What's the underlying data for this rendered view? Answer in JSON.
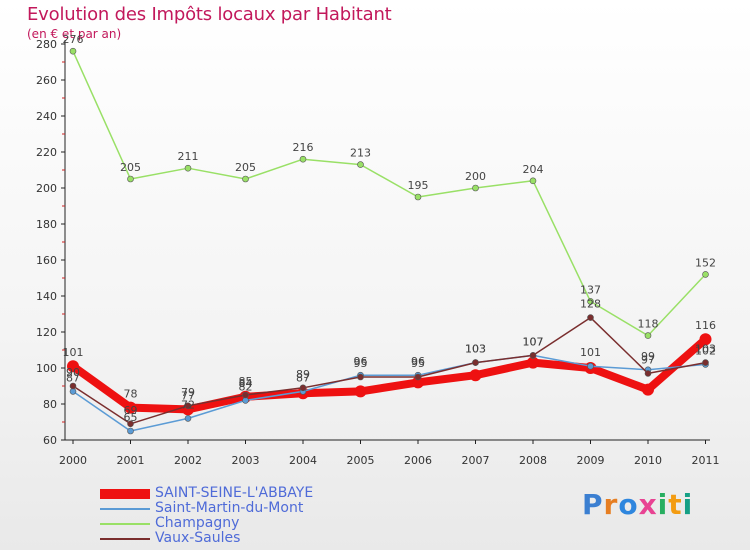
{
  "title": "Evolution des Impôts locaux par Habitant",
  "subtitle": "(en € et par an)",
  "logo": {
    "letters": [
      "P",
      "r",
      "o",
      "x",
      "i",
      "t",
      "i"
    ],
    "colors": [
      "#3b7fd1",
      "#e67e22",
      "#2e86de",
      "#e84393",
      "#27ae60",
      "#f39c12",
      "#16a085"
    ]
  },
  "chart_data": {
    "type": "line",
    "title": "Evolution des Impôts locaux par Habitant",
    "subtitle": "(en € et par an)",
    "x": [
      "2000",
      "2001",
      "2002",
      "2003",
      "2004",
      "2005",
      "2006",
      "2007",
      "2008",
      "2009",
      "2010",
      "2011"
    ],
    "ylim": [
      60,
      280
    ],
    "yticks": [
      "60",
      "80",
      "100",
      "120",
      "140",
      "160",
      "180",
      "200",
      "220",
      "240",
      "260",
      "280"
    ],
    "grid": false,
    "legend_position": "bottom-left",
    "series": [
      {
        "name": "SAINT-SEINE-L'ABBAYE",
        "color": "#ee1111",
        "values": [
          101,
          78,
          77,
          84,
          86,
          87,
          92,
          96,
          103,
          100,
          88,
          116
        ],
        "labels": [
          "101",
          "78",
          "77",
          "84",
          "",
          "",
          "",
          "",
          "",
          "",
          "",
          "116"
        ]
      },
      {
        "name": "Saint-Martin-du-Mont",
        "color": "#5b9bd5",
        "values": [
          87,
          65,
          72,
          82,
          87,
          96,
          96,
          103,
          107,
          101,
          99,
          102
        ],
        "labels": [
          "87",
          "65",
          "72",
          "82",
          "87",
          "96",
          "96",
          "103",
          "107",
          "101",
          "99",
          "102"
        ]
      },
      {
        "name": "Champagny",
        "color": "#99e066",
        "values": [
          276,
          205,
          211,
          205,
          216,
          213,
          195,
          200,
          204,
          137,
          118,
          152
        ],
        "labels": [
          "276",
          "205",
          "211",
          "205",
          "216",
          "213",
          "195",
          "200",
          "204",
          "137",
          "118",
          "152"
        ]
      },
      {
        "name": "Vaux-Saules",
        "color": "#7a2e2e",
        "values": [
          90,
          69,
          79,
          85,
          89,
          95,
          95,
          103,
          107,
          128,
          97,
          103
        ],
        "labels": [
          "90",
          "69",
          "79",
          "85",
          "89",
          "95",
          "95",
          "103",
          "107",
          "128",
          "97",
          "103"
        ]
      }
    ]
  }
}
